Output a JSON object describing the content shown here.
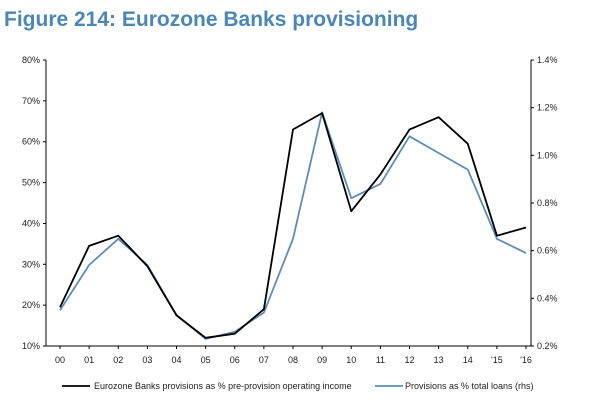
{
  "chart_data": {
    "type": "line",
    "title": "Figure 214: Eurozone Banks provisioning",
    "categories": [
      "00",
      "01",
      "02",
      "03",
      "04",
      "05",
      "06",
      "07",
      "08",
      "09",
      "10",
      "11",
      "12",
      "13",
      "14",
      "'15",
      "'16"
    ],
    "y_left": {
      "range": [
        0.1,
        0.8
      ],
      "ticks": [
        "10%",
        "20%",
        "30%",
        "40%",
        "50%",
        "60%",
        "70%",
        "80%"
      ]
    },
    "y_right": {
      "range": [
        0.002,
        0.014
      ],
      "ticks": [
        "0.2%",
        "0.4%",
        "0.6%",
        "0.8%",
        "1.0%",
        "1.2%",
        "1.4%"
      ]
    },
    "series": [
      {
        "name": "Eurozone Banks provisions as % pre-provision operating income",
        "axis": "left",
        "color": "#000000",
        "values": [
          0.195,
          0.345,
          0.37,
          0.295,
          0.175,
          0.12,
          0.13,
          0.19,
          0.63,
          0.67,
          0.43,
          0.52,
          0.63,
          0.66,
          0.595,
          0.37,
          0.39
        ]
      },
      {
        "name": "Provisions as % total loans (rhs)",
        "axis": "right",
        "color": "#5b8db8",
        "values": [
          0.0035,
          0.0054,
          0.0065,
          0.0054,
          0.0033,
          0.0023,
          0.0026,
          0.0034,
          0.0065,
          0.0118,
          0.0082,
          0.0088,
          0.0108,
          0.0101,
          0.0094,
          0.0065,
          0.0059
        ]
      }
    ],
    "grid": false,
    "legend": "bottom"
  }
}
